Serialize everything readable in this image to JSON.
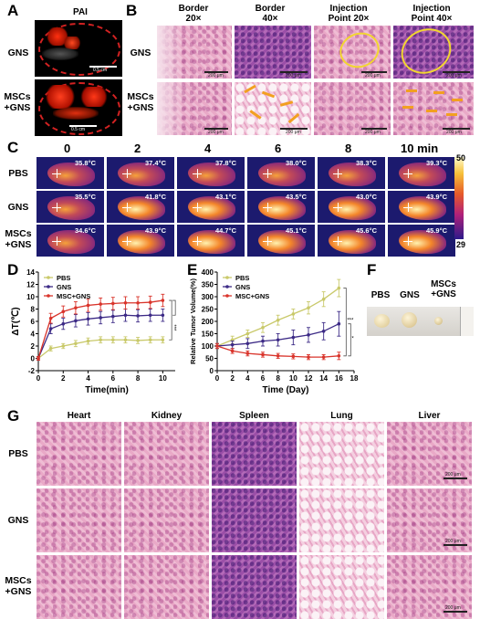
{
  "panels": {
    "A": {
      "letter": "A",
      "title": "PAI",
      "rows": [
        "GNS",
        "MSCs\n+GNS"
      ],
      "scale": "0.5 cm"
    },
    "B": {
      "letter": "B",
      "columns": [
        "Border\n20×",
        "Border\n40×",
        "Injection\nPoint 20×",
        "Injection\nPoint 40×"
      ],
      "rows": [
        "GNS",
        "MSCs\n+GNS"
      ],
      "scale": "200 μm"
    },
    "C": {
      "letter": "C",
      "timepoints": [
        "0",
        "2",
        "4",
        "6",
        "8",
        "10 min"
      ],
      "rows": [
        "PBS",
        "GNS",
        "MSCs\n+GNS"
      ],
      "temps": [
        [
          "35.8°C",
          "37.4°C",
          "37.8°C",
          "38.0°C",
          "38.3°C",
          "39.3°C"
        ],
        [
          "35.5°C",
          "41.8°C",
          "43.1°C",
          "43.5°C",
          "43.0°C",
          "43.9°C"
        ],
        [
          "34.6°C",
          "43.9°C",
          "44.7°C",
          "45.1°C",
          "45.6°C",
          "45.9°C"
        ]
      ],
      "colorbar_max": "50",
      "colorbar_min": "29"
    },
    "D": {
      "letter": "D"
    },
    "E": {
      "letter": "E"
    },
    "F": {
      "letter": "F",
      "labels": [
        "PBS",
        "GNS",
        "MSCs\n+GNS"
      ]
    },
    "G": {
      "letter": "G",
      "columns": [
        "Heart",
        "Kidney",
        "Spleen",
        "Lung",
        "Liver"
      ],
      "rows": [
        "PBS",
        "GNS",
        "MSCs\n+GNS"
      ],
      "scale": "200 μm"
    }
  },
  "chart_data": [
    {
      "type": "line",
      "panel": "D",
      "xlabel": "Time(min)",
      "ylabel": "ΔT(℃)",
      "xlim": [
        0,
        11
      ],
      "ylim": [
        -2,
        14
      ],
      "xticks": [
        0,
        2,
        4,
        6,
        8,
        10
      ],
      "yticks": [
        -2,
        0,
        2,
        4,
        6,
        8,
        10,
        12,
        14
      ],
      "legend_position": "top-left",
      "x": [
        0,
        1,
        2,
        3,
        4,
        5,
        6,
        7,
        8,
        9,
        10
      ],
      "series": [
        {
          "name": "PBS",
          "color": "#c9c96a",
          "values": [
            0,
            1.6,
            2.0,
            2.4,
            2.8,
            3.0,
            3.0,
            3.0,
            2.9,
            3.0,
            3.0
          ],
          "err": [
            0.3,
            0.4,
            0.4,
            0.5,
            0.5,
            0.5,
            0.5,
            0.5,
            0.5,
            0.5,
            0.5
          ]
        },
        {
          "name": "GNS",
          "color": "#3c2a86",
          "values": [
            0,
            4.8,
            5.6,
            6.1,
            6.4,
            6.6,
            6.8,
            7.0,
            6.9,
            7.0,
            7.0
          ],
          "err": [
            0.3,
            0.8,
            0.9,
            1.0,
            1.0,
            1.0,
            1.0,
            1.0,
            1.0,
            1.0,
            1.0
          ]
        },
        {
          "name": "MSC+GNS",
          "color": "#d9342b",
          "values": [
            0,
            6.5,
            7.6,
            8.2,
            8.6,
            8.8,
            8.9,
            9.0,
            9.0,
            9.1,
            9.4
          ],
          "err": [
            0.3,
            0.8,
            0.9,
            1.0,
            1.0,
            1.0,
            1.0,
            1.0,
            1.0,
            1.0,
            1.0
          ]
        }
      ],
      "significance": "***"
    },
    {
      "type": "line",
      "panel": "E",
      "xlabel": "Time (Day)",
      "ylabel": "Relative Tumor Volume(%)",
      "xlim": [
        0,
        18
      ],
      "ylim": [
        0,
        400
      ],
      "xticks": [
        0,
        2,
        4,
        6,
        8,
        10,
        12,
        14,
        16,
        18
      ],
      "yticks": [
        0,
        50,
        100,
        150,
        200,
        250,
        300,
        350,
        400
      ],
      "legend_position": "top-left",
      "x": [
        0,
        2,
        4,
        6,
        8,
        10,
        12,
        14,
        16
      ],
      "series": [
        {
          "name": "PBS",
          "color": "#c9c96a",
          "values": [
            100,
            125,
            150,
            175,
            205,
            230,
            255,
            290,
            335
          ],
          "err": [
            10,
            15,
            15,
            20,
            20,
            20,
            25,
            30,
            35
          ]
        },
        {
          "name": "GNS",
          "color": "#3c2a86",
          "values": [
            100,
            105,
            110,
            120,
            125,
            135,
            145,
            160,
            190
          ],
          "err": [
            10,
            15,
            20,
            20,
            25,
            30,
            30,
            35,
            50
          ]
        },
        {
          "name": "MSC+GNS",
          "color": "#d9342b",
          "values": [
            100,
            80,
            70,
            65,
            60,
            58,
            55,
            55,
            60
          ],
          "err": [
            10,
            10,
            10,
            10,
            10,
            10,
            10,
            10,
            15
          ]
        }
      ],
      "significance": [
        "***",
        "*"
      ]
    }
  ]
}
